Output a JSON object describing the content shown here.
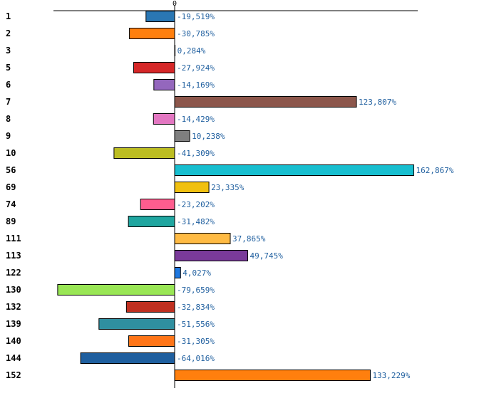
{
  "chart_data": {
    "type": "bar",
    "orientation": "horizontal",
    "zero_tick_label": "0",
    "categories": [
      "1",
      "2",
      "3",
      "5",
      "6",
      "7",
      "8",
      "9",
      "10",
      "56",
      "69",
      "74",
      "89",
      "111",
      "113",
      "122",
      "130",
      "132",
      "139",
      "140",
      "144",
      "152"
    ],
    "values": [
      -19.519,
      -30.785,
      0.284,
      -27.924,
      -14.169,
      123.807,
      -14.429,
      10.238,
      -41.309,
      162.867,
      23.335,
      -23.202,
      -31.482,
      37.865,
      49.745,
      4.027,
      -79.659,
      -32.834,
      -51.556,
      -31.305,
      -64.016,
      133.229
    ],
    "value_labels": [
      "-19,519%",
      "-30,785%",
      "0,284%",
      "-27,924%",
      "-14,169%",
      "123,807%",
      "-14,429%",
      "10,238%",
      "-41,309%",
      "162,867%",
      "23,335%",
      "-23,202%",
      "-31,482%",
      "37,865%",
      "49,745%",
      "4,027%",
      "-79,659%",
      "-32,834%",
      "-51,556%",
      "-31,305%",
      "-64,016%",
      "133,229%"
    ],
    "colors": [
      "#2a77b4",
      "#ff7f0e",
      "#2ca02c",
      "#d62728",
      "#9467bd",
      "#8c564b",
      "#e377c2",
      "#7f7f7f",
      "#bcbd22",
      "#17becf",
      "#f0c010",
      "#ff5d8f",
      "#1fa6a0",
      "#ffbb44",
      "#7a3a9a",
      "#1f78e0",
      "#99e655",
      "#c03020",
      "#2f8fa0",
      "#ff7518",
      "#1f5f9f",
      "#ff7f0e"
    ],
    "xlim": [
      -82,
      163
    ],
    "title": "",
    "xlabel": "",
    "ylabel": "",
    "grid": false,
    "legend": "none"
  }
}
